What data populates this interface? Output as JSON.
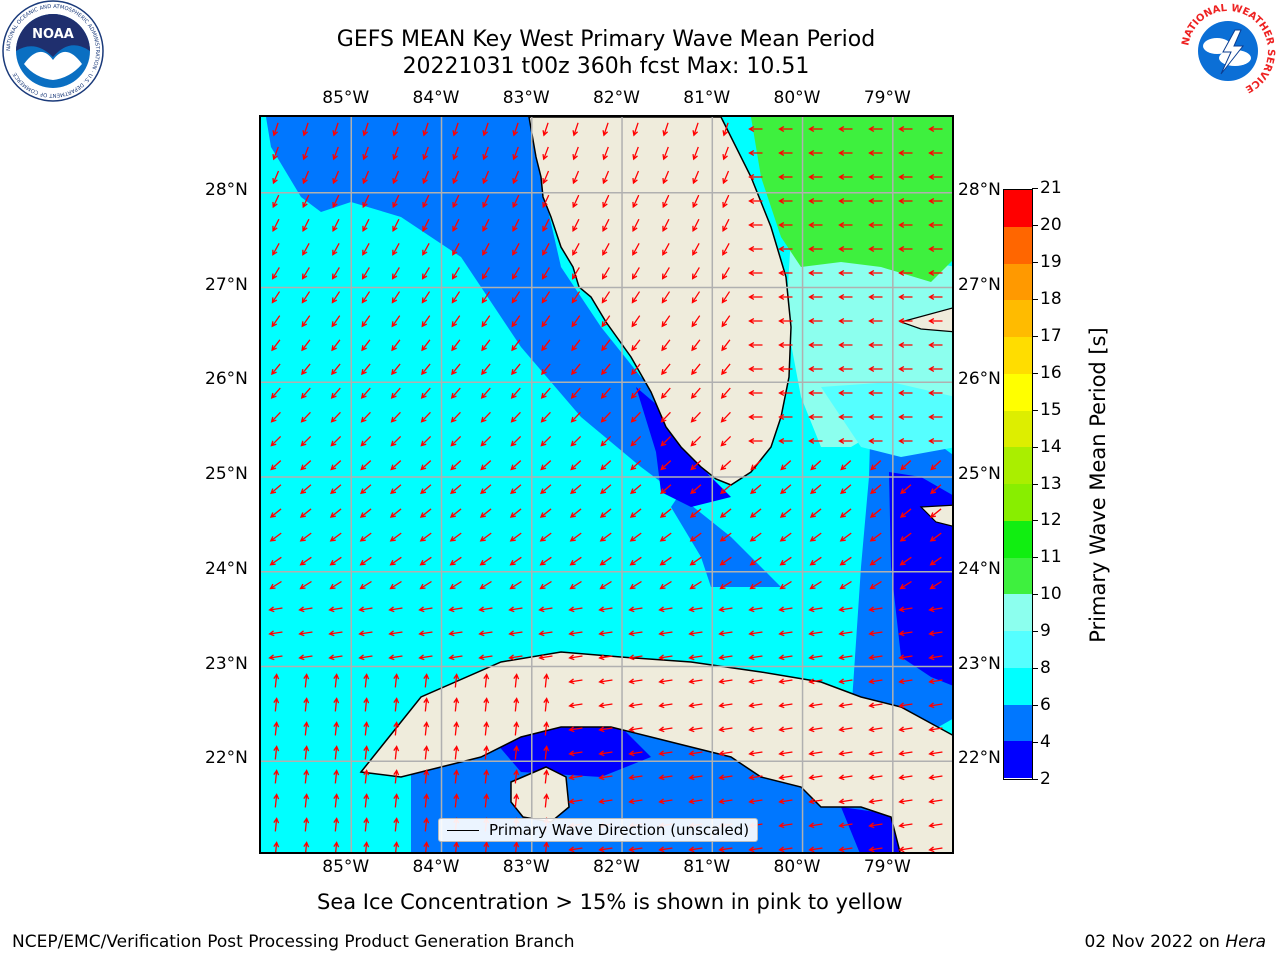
{
  "title_line1": "GEFS MEAN Key West Primary Wave Mean Period",
  "title_line2": "20221031 t00z 360h fcst   Max: 10.51",
  "lon_ticks": [
    "85°W",
    "84°W",
    "83°W",
    "82°W",
    "81°W",
    "80°W",
    "79°W"
  ],
  "lat_ticks": [
    "28°N",
    "27°N",
    "26°N",
    "25°N",
    "24°N",
    "23°N",
    "22°N"
  ],
  "map_extent": {
    "lon_min": -86.0,
    "lon_max": -78.3,
    "lat_min": 21.0,
    "lat_max": 28.8
  },
  "legend_label": "Primary Wave Direction (unscaled)",
  "colorbar": {
    "label": "Primary Wave Mean Period [s]",
    "ticks": [
      "2",
      "4",
      "6",
      "8",
      "9",
      "10",
      "11",
      "12",
      "13",
      "14",
      "15",
      "16",
      "17",
      "18",
      "19",
      "20",
      "21"
    ],
    "colors": [
      "#0000ff",
      "#0077ff",
      "#00ffff",
      "#55ffff",
      "#8cffee",
      "#3ef03e",
      "#11ee11",
      "#88ee00",
      "#aaee00",
      "#ddee00",
      "#ffff00",
      "#ffdd00",
      "#ffbb00",
      "#ff9900",
      "#ff6600",
      "#ff3300",
      "#ff0000"
    ]
  },
  "vector_color": "#ff0000",
  "land_color": "#efecdc",
  "ice_note": "Sea Ice Concentration > 15% is shown in pink to yellow",
  "footer_left": "NCEP/EMC/Verification Post Processing Product Generation Branch",
  "footer_date": "02 Nov 2022 on",
  "footer_host": "Hera",
  "logos": {
    "noaa_text": "NOAA",
    "noaa_ring": "NATIONAL OCEANIC AND ATMOSPHERIC ADMINISTRATION · U.S. DEPARTMENT OF COMMERCE",
    "nws_ring": "NATIONAL WEATHER SERVICE"
  }
}
